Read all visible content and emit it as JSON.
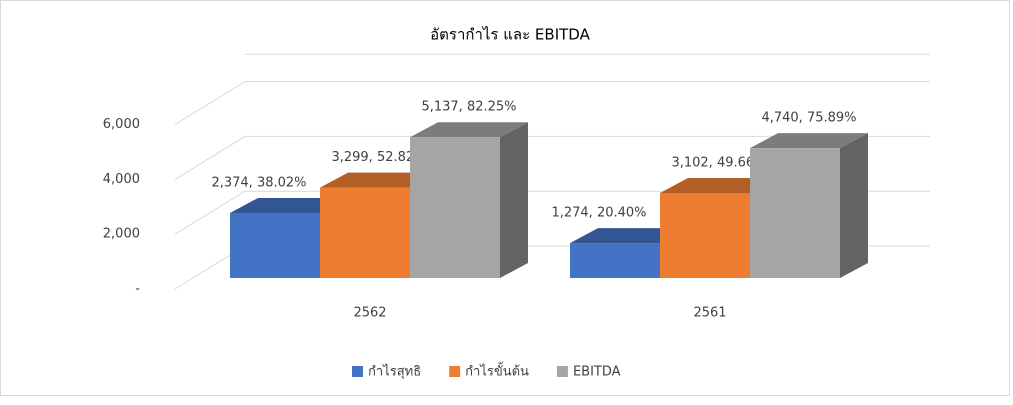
{
  "chart_data": {
    "type": "bar3d",
    "title": "อัตรากำไร และ EBITDA",
    "categories": [
      "2562",
      "2561"
    ],
    "series": [
      {
        "name": "กำไรสุทธิ",
        "color": "#4472c4",
        "values": [
          2374,
          1274
        ],
        "value_labels": [
          "2,374, 38.02%",
          "1,274, 20.40%"
        ]
      },
      {
        "name": "กำไรขั้นต้น",
        "color": "#ed7d31",
        "values": [
          3299,
          3102
        ],
        "value_labels": [
          "3,299, 52.82%",
          "3,102, 49.66%"
        ]
      },
      {
        "name": "EBITDA",
        "color": "#a5a5a5",
        "values": [
          5137,
          4740
        ],
        "value_labels": [
          "5,137, 82.25%",
          "4,740, 75.89%"
        ]
      }
    ],
    "ylim": [
      0,
      7000
    ],
    "yticks": [
      {
        "value": 0,
        "label": "-"
      },
      {
        "value": 2000,
        "label": "2,000"
      },
      {
        "value": 4000,
        "label": "4,000"
      },
      {
        "value": 6000,
        "label": "6,000"
      }
    ],
    "grid": true,
    "legend": "bottom"
  }
}
